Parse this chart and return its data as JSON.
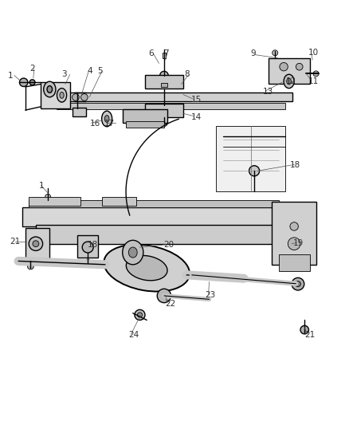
{
  "title": "",
  "background_color": "#ffffff",
  "line_color": "#000000",
  "label_color": "#404040",
  "figsize": [
    4.38,
    5.33
  ],
  "dpi": 100,
  "label_fontsize": 7.5
}
